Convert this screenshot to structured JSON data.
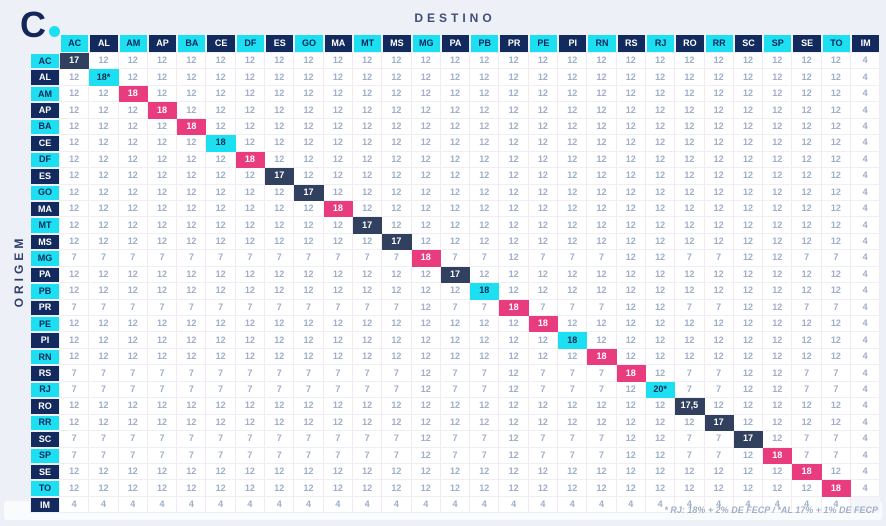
{
  "logo": {
    "letter": "C",
    "dot_color": "#1CE0F1"
  },
  "header": {
    "title": "DESTINO",
    "origin_label": "ORIGEM"
  },
  "footnote": "* RJ: 18% + 2% DE FECP / *AL 17% + 1% DE FECP",
  "colors": {
    "cyan": "#1CE0F1",
    "navy": "#132A5E",
    "pink": "#E93C7E",
    "diag_navy": "#32405F",
    "page_bg": "#EDF0F6",
    "cell_bg": "#FFFFFF",
    "cell_text": "#9FAEC9",
    "title_text": "#3E4D78"
  },
  "chart_data": {
    "type": "table",
    "title": "DESTINO",
    "row_axis_label": "ORIGEM",
    "footnote": "* RJ: 18% + 2% DE FECP / *AL 17% + 1% DE FECP",
    "col_headers": [
      "AC",
      "AL",
      "AM",
      "AP",
      "BA",
      "CE",
      "DF",
      "ES",
      "GO",
      "MA",
      "MT",
      "MS",
      "MG",
      "PA",
      "PB",
      "PR",
      "PE",
      "PI",
      "RN",
      "RS",
      "RJ",
      "RO",
      "RR",
      "SC",
      "SP",
      "SE",
      "TO",
      "IM"
    ],
    "row_headers": [
      "AC",
      "AL",
      "AM",
      "AP",
      "BA",
      "CE",
      "DF",
      "ES",
      "GO",
      "MA",
      "MT",
      "MS",
      "MG",
      "PA",
      "PB",
      "PR",
      "PE",
      "PI",
      "RN",
      "RS",
      "RJ",
      "RO",
      "RR",
      "SC",
      "SP",
      "SE",
      "TO",
      "IM"
    ],
    "header_color_rule": "alternating cyan/navy starting with cyan",
    "diag_colors": [
      "navy",
      "cyan",
      "pink",
      "pink",
      "pink",
      "cyan",
      "pink",
      "navy",
      "navy",
      "pink",
      "navy",
      "navy",
      "pink",
      "navy",
      "cyan",
      "pink",
      "pink",
      "cyan",
      "pink",
      "pink",
      "cyan",
      "navy",
      "navy",
      "navy",
      "pink",
      "pink",
      "pink",
      ""
    ],
    "rows": [
      [
        "17",
        "12",
        "12",
        "12",
        "12",
        "12",
        "12",
        "12",
        "12",
        "12",
        "12",
        "12",
        "12",
        "12",
        "12",
        "12",
        "12",
        "12",
        "12",
        "12",
        "12",
        "12",
        "12",
        "12",
        "12",
        "12",
        "12",
        "4"
      ],
      [
        "12",
        "18*",
        "12",
        "12",
        "12",
        "12",
        "12",
        "12",
        "12",
        "12",
        "12",
        "12",
        "12",
        "12",
        "12",
        "12",
        "12",
        "12",
        "12",
        "12",
        "12",
        "12",
        "12",
        "12",
        "12",
        "12",
        "12",
        "4"
      ],
      [
        "12",
        "12",
        "18",
        "12",
        "12",
        "12",
        "12",
        "12",
        "12",
        "12",
        "12",
        "12",
        "12",
        "12",
        "12",
        "12",
        "12",
        "12",
        "12",
        "12",
        "12",
        "12",
        "12",
        "12",
        "12",
        "12",
        "12",
        "4"
      ],
      [
        "12",
        "12",
        "12",
        "18",
        "12",
        "12",
        "12",
        "12",
        "12",
        "12",
        "12",
        "12",
        "12",
        "12",
        "12",
        "12",
        "12",
        "12",
        "12",
        "12",
        "12",
        "12",
        "12",
        "12",
        "12",
        "12",
        "12",
        "4"
      ],
      [
        "12",
        "12",
        "12",
        "12",
        "18",
        "12",
        "12",
        "12",
        "12",
        "12",
        "12",
        "12",
        "12",
        "12",
        "12",
        "12",
        "12",
        "12",
        "12",
        "12",
        "12",
        "12",
        "12",
        "12",
        "12",
        "12",
        "12",
        "4"
      ],
      [
        "12",
        "12",
        "12",
        "12",
        "12",
        "18",
        "12",
        "12",
        "12",
        "12",
        "12",
        "12",
        "12",
        "12",
        "12",
        "12",
        "12",
        "12",
        "12",
        "12",
        "12",
        "12",
        "12",
        "12",
        "12",
        "12",
        "12",
        "4"
      ],
      [
        "12",
        "12",
        "12",
        "12",
        "12",
        "12",
        "18",
        "12",
        "12",
        "12",
        "12",
        "12",
        "12",
        "12",
        "12",
        "12",
        "12",
        "12",
        "12",
        "12",
        "12",
        "12",
        "12",
        "12",
        "12",
        "12",
        "12",
        "4"
      ],
      [
        "12",
        "12",
        "12",
        "12",
        "12",
        "12",
        "12",
        "17",
        "12",
        "12",
        "12",
        "12",
        "12",
        "12",
        "12",
        "12",
        "12",
        "12",
        "12",
        "12",
        "12",
        "12",
        "12",
        "12",
        "12",
        "12",
        "12",
        "4"
      ],
      [
        "12",
        "12",
        "12",
        "12",
        "12",
        "12",
        "12",
        "12",
        "17",
        "12",
        "12",
        "12",
        "12",
        "12",
        "12",
        "12",
        "12",
        "12",
        "12",
        "12",
        "12",
        "12",
        "12",
        "12",
        "12",
        "12",
        "12",
        "4"
      ],
      [
        "12",
        "12",
        "12",
        "12",
        "12",
        "12",
        "12",
        "12",
        "12",
        "18",
        "12",
        "12",
        "12",
        "12",
        "12",
        "12",
        "12",
        "12",
        "12",
        "12",
        "12",
        "12",
        "12",
        "12",
        "12",
        "12",
        "12",
        "4"
      ],
      [
        "12",
        "12",
        "12",
        "12",
        "12",
        "12",
        "12",
        "12",
        "12",
        "12",
        "17",
        "12",
        "12",
        "12",
        "12",
        "12",
        "12",
        "12",
        "12",
        "12",
        "12",
        "12",
        "12",
        "12",
        "12",
        "12",
        "12",
        "4"
      ],
      [
        "12",
        "12",
        "12",
        "12",
        "12",
        "12",
        "12",
        "12",
        "12",
        "12",
        "12",
        "17",
        "12",
        "12",
        "12",
        "12",
        "12",
        "12",
        "12",
        "12",
        "12",
        "12",
        "12",
        "12",
        "12",
        "12",
        "12",
        "4"
      ],
      [
        "7",
        "7",
        "7",
        "7",
        "7",
        "7",
        "7",
        "7",
        "7",
        "7",
        "7",
        "7",
        "18",
        "7",
        "7",
        "12",
        "7",
        "7",
        "7",
        "12",
        "12",
        "7",
        "7",
        "12",
        "12",
        "7",
        "7",
        "4"
      ],
      [
        "12",
        "12",
        "12",
        "12",
        "12",
        "12",
        "12",
        "12",
        "12",
        "12",
        "12",
        "12",
        "12",
        "17",
        "12",
        "12",
        "12",
        "12",
        "12",
        "12",
        "12",
        "12",
        "12",
        "12",
        "12",
        "12",
        "12",
        "4"
      ],
      [
        "12",
        "12",
        "12",
        "12",
        "12",
        "12",
        "12",
        "12",
        "12",
        "12",
        "12",
        "12",
        "12",
        "12",
        "18",
        "12",
        "12",
        "12",
        "12",
        "12",
        "12",
        "12",
        "12",
        "12",
        "12",
        "12",
        "12",
        "4"
      ],
      [
        "7",
        "7",
        "7",
        "7",
        "7",
        "7",
        "7",
        "7",
        "7",
        "7",
        "7",
        "7",
        "12",
        "7",
        "7",
        "18",
        "7",
        "7",
        "7",
        "12",
        "12",
        "7",
        "7",
        "12",
        "12",
        "7",
        "7",
        "4"
      ],
      [
        "12",
        "12",
        "12",
        "12",
        "12",
        "12",
        "12",
        "12",
        "12",
        "12",
        "12",
        "12",
        "12",
        "12",
        "12",
        "12",
        "18",
        "12",
        "12",
        "12",
        "12",
        "12",
        "12",
        "12",
        "12",
        "12",
        "12",
        "4"
      ],
      [
        "12",
        "12",
        "12",
        "12",
        "12",
        "12",
        "12",
        "12",
        "12",
        "12",
        "12",
        "12",
        "12",
        "12",
        "12",
        "12",
        "12",
        "18",
        "12",
        "12",
        "12",
        "12",
        "12",
        "12",
        "12",
        "12",
        "12",
        "4"
      ],
      [
        "12",
        "12",
        "12",
        "12",
        "12",
        "12",
        "12",
        "12",
        "12",
        "12",
        "12",
        "12",
        "12",
        "12",
        "12",
        "12",
        "12",
        "12",
        "18",
        "12",
        "12",
        "12",
        "12",
        "12",
        "12",
        "12",
        "12",
        "4"
      ],
      [
        "7",
        "7",
        "7",
        "7",
        "7",
        "7",
        "7",
        "7",
        "7",
        "7",
        "7",
        "7",
        "12",
        "7",
        "7",
        "12",
        "7",
        "7",
        "7",
        "18",
        "12",
        "7",
        "7",
        "12",
        "12",
        "7",
        "7",
        "4"
      ],
      [
        "7",
        "7",
        "7",
        "7",
        "7",
        "7",
        "7",
        "7",
        "7",
        "7",
        "7",
        "7",
        "12",
        "7",
        "7",
        "12",
        "7",
        "7",
        "7",
        "12",
        "20*",
        "7",
        "7",
        "12",
        "12",
        "7",
        "7",
        "4"
      ],
      [
        "12",
        "12",
        "12",
        "12",
        "12",
        "12",
        "12",
        "12",
        "12",
        "12",
        "12",
        "12",
        "12",
        "12",
        "12",
        "12",
        "12",
        "12",
        "12",
        "12",
        "12",
        "17,5",
        "12",
        "12",
        "12",
        "12",
        "12",
        "4"
      ],
      [
        "12",
        "12",
        "12",
        "12",
        "12",
        "12",
        "12",
        "12",
        "12",
        "12",
        "12",
        "12",
        "12",
        "12",
        "12",
        "12",
        "12",
        "12",
        "12",
        "12",
        "12",
        "12",
        "17",
        "12",
        "12",
        "12",
        "12",
        "4"
      ],
      [
        "7",
        "7",
        "7",
        "7",
        "7",
        "7",
        "7",
        "7",
        "7",
        "7",
        "7",
        "7",
        "12",
        "7",
        "7",
        "12",
        "7",
        "7",
        "7",
        "12",
        "12",
        "7",
        "7",
        "17",
        "12",
        "7",
        "7",
        "4"
      ],
      [
        "7",
        "7",
        "7",
        "7",
        "7",
        "7",
        "7",
        "7",
        "7",
        "7",
        "7",
        "7",
        "12",
        "7",
        "7",
        "12",
        "7",
        "7",
        "7",
        "12",
        "12",
        "7",
        "7",
        "12",
        "18",
        "7",
        "7",
        "4"
      ],
      [
        "12",
        "12",
        "12",
        "12",
        "12",
        "12",
        "12",
        "12",
        "12",
        "12",
        "12",
        "12",
        "12",
        "12",
        "12",
        "12",
        "12",
        "12",
        "12",
        "12",
        "12",
        "12",
        "12",
        "12",
        "12",
        "18",
        "12",
        "4"
      ],
      [
        "12",
        "12",
        "12",
        "12",
        "12",
        "12",
        "12",
        "12",
        "12",
        "12",
        "12",
        "12",
        "12",
        "12",
        "12",
        "12",
        "12",
        "12",
        "12",
        "12",
        "12",
        "12",
        "12",
        "12",
        "12",
        "12",
        "18",
        "4"
      ],
      [
        "4",
        "4",
        "4",
        "4",
        "4",
        "4",
        "4",
        "4",
        "4",
        "4",
        "4",
        "4",
        "4",
        "4",
        "4",
        "4",
        "4",
        "4",
        "4",
        "4",
        "4",
        "4",
        "4",
        "4",
        "4",
        "4",
        "4",
        ""
      ]
    ]
  }
}
